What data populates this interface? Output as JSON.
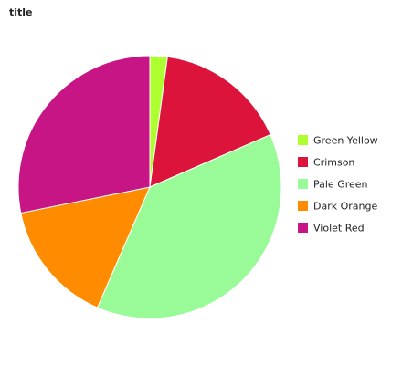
{
  "chart_data": {
    "type": "pie",
    "title": "title",
    "categories": [
      "Green Yellow",
      "Crimson",
      "Pale Green",
      "Dark Orange",
      "Violet Red"
    ],
    "values": [
      2.1,
      16.0,
      37.3,
      15.0,
      27.6
    ],
    "colors": [
      "#adff2f",
      "#dc143c",
      "#98fb98",
      "#ff8c00",
      "#c71585"
    ],
    "start_angle_deg": 90,
    "direction": "clockwise",
    "legend": {
      "placement": "right",
      "entries": [
        "Green Yellow",
        "Crimson",
        "Pale Green",
        "Dark Orange",
        "Violet Red"
      ]
    }
  }
}
